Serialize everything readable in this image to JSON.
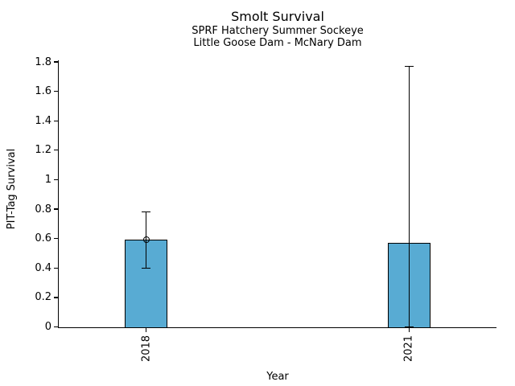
{
  "chart_data": {
    "type": "bar",
    "title": "Smolt Survival",
    "subtitles": [
      "SPRF Hatchery Summer Sockeye",
      "Little Goose Dam - McNary Dam"
    ],
    "xlabel": "Year",
    "ylabel": "PIT-Tag Survival",
    "categories": [
      "2018",
      "2021"
    ],
    "values": [
      0.59,
      0.57
    ],
    "error_low": [
      0.4,
      0.0
    ],
    "error_high": [
      0.78,
      1.77
    ],
    "point_markers": [
      true,
      false
    ],
    "ylim": [
      0,
      1.8
    ],
    "ytick_labels": [
      "0",
      "0.2",
      "0.4",
      "0.6",
      "0.8",
      "1",
      "1.2",
      "1.4",
      "1.6",
      "1.8"
    ],
    "ytick_values": [
      0,
      0.2,
      0.4,
      0.6,
      0.8,
      1.0,
      1.2,
      1.4,
      1.6,
      1.8
    ],
    "grid": false,
    "legend": "none",
    "bar_color": "#58ABD3",
    "bar_edge_color": "#000000",
    "axis_color": "#000000",
    "x_tick_rotation_deg": 90,
    "bar_center_fracs": [
      0.2,
      0.8
    ]
  }
}
